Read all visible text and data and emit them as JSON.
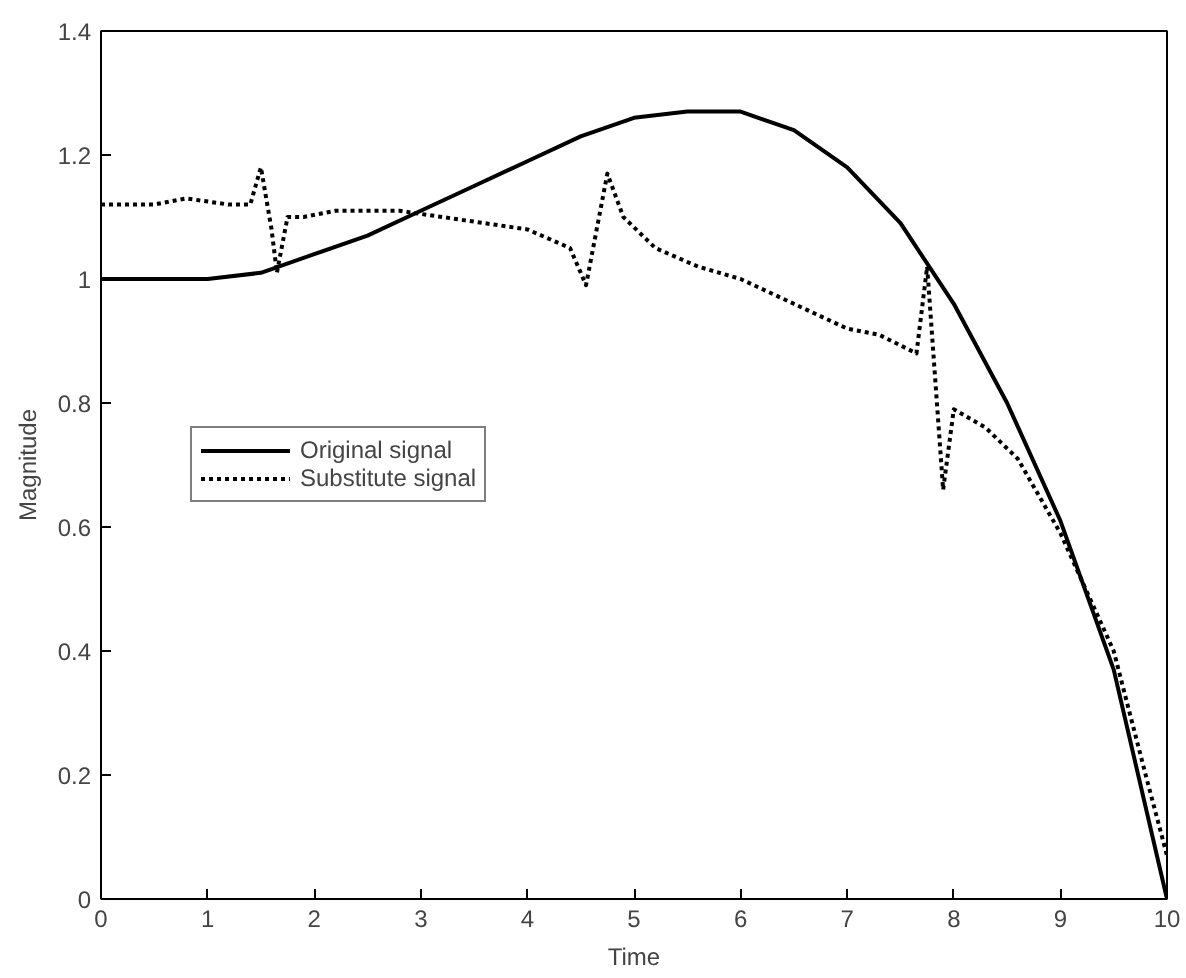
{
  "chart_data": {
    "type": "line",
    "xlabel": "Time",
    "ylabel": "Magnitude",
    "xlim": [
      0,
      10
    ],
    "ylim": [
      0,
      1.4
    ],
    "xticks": [
      0,
      1,
      2,
      3,
      4,
      5,
      6,
      7,
      8,
      9,
      10
    ],
    "yticks": [
      0,
      0.2,
      0.4,
      0.6,
      0.8,
      1,
      1.2,
      1.4
    ],
    "grid": false,
    "legend": "left",
    "marker": "none",
    "series": [
      {
        "name": "Original signal",
        "color": "#000000",
        "line_style": "solid",
        "x": [
          0,
          1,
          1.5,
          2,
          2.5,
          3,
          3.5,
          4,
          4.5,
          5,
          5.5,
          6,
          6.5,
          7,
          7.5,
          8,
          8.5,
          9,
          9.5,
          10
        ],
        "values": [
          1,
          1,
          1.01,
          1.04,
          1.07,
          1.11,
          1.15,
          1.19,
          1.23,
          1.26,
          1.27,
          1.27,
          1.24,
          1.18,
          1.09,
          0.96,
          0.8,
          0.61,
          0.37,
          0
        ]
      },
      {
        "name": "Substitute signal",
        "color": "#000000",
        "line_style": "dotted",
        "x": [
          0,
          0.5,
          0.8,
          1.2,
          1.4,
          1.5,
          1.6,
          1.65,
          1.75,
          1.9,
          2.2,
          2.8,
          3.2,
          3.6,
          4.0,
          4.4,
          4.55,
          4.75,
          4.9,
          5.2,
          5.6,
          6.0,
          6.5,
          7.0,
          7.3,
          7.65,
          7.75,
          7.9,
          8.0,
          8.3,
          8.6,
          9.0,
          9.5,
          9.8,
          10
        ],
        "values": [
          1.12,
          1.12,
          1.13,
          1.12,
          1.12,
          1.18,
          1.08,
          1.01,
          1.1,
          1.1,
          1.11,
          1.11,
          1.1,
          1.09,
          1.08,
          1.05,
          0.99,
          1.17,
          1.1,
          1.05,
          1.02,
          1.0,
          0.96,
          0.92,
          0.91,
          0.88,
          1.02,
          0.66,
          0.79,
          0.76,
          0.71,
          0.59,
          0.4,
          0.2,
          0.07
        ]
      }
    ]
  }
}
